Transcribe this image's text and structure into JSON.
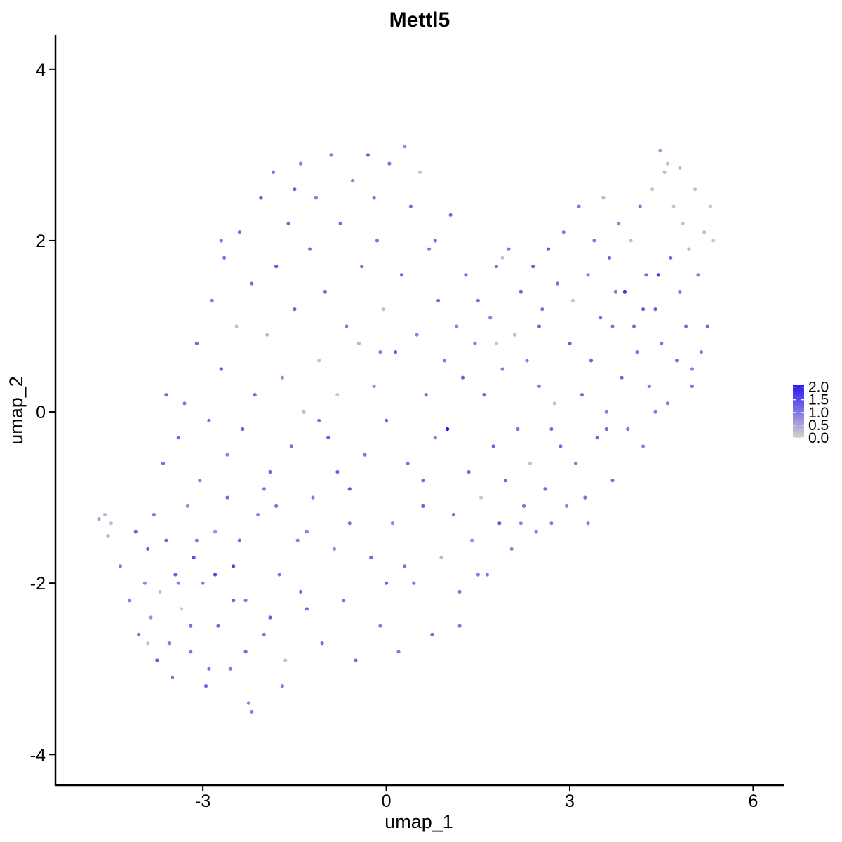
{
  "colors": {
    "low": "#d3d3d3",
    "high": "#2a17f0",
    "axis": "#000000"
  },
  "chart_data": {
    "type": "scatter",
    "title": "Mettl5",
    "xlabel": "umap_1",
    "ylabel": "umap_2",
    "xlim": [
      -5.4,
      6.5
    ],
    "ylim": [
      -4.35,
      4.4
    ],
    "xticks": [
      {
        "value": -3,
        "label": "-3"
      },
      {
        "value": 0,
        "label": "0"
      },
      {
        "value": 3,
        "label": "3"
      },
      {
        "value": 6,
        "label": "6"
      }
    ],
    "yticks": [
      {
        "value": -4,
        "label": "-4"
      },
      {
        "value": -2,
        "label": "-2"
      },
      {
        "value": 0,
        "label": "0"
      },
      {
        "value": 2,
        "label": "2"
      },
      {
        "value": 4,
        "label": "4"
      }
    ],
    "color_scale": {
      "min": 0,
      "max": 2.1,
      "ticks": [
        {
          "value": 2.0,
          "label": "2.0"
        },
        {
          "value": 1.5,
          "label": "1.5"
        },
        {
          "value": 1.0,
          "label": "1.0"
        },
        {
          "value": 0.5,
          "label": "0.5"
        },
        {
          "value": 0.0,
          "label": "0.0"
        }
      ]
    },
    "grid": false,
    "legend": "right",
    "points": [
      [
        -4.7,
        -1.25,
        0.6
      ],
      [
        -4.6,
        -1.2,
        0.3
      ],
      [
        -4.55,
        -1.45,
        0.5
      ],
      [
        -4.5,
        -1.3,
        0.2
      ],
      [
        -4.35,
        -1.8,
        1.0
      ],
      [
        -4.2,
        -2.2,
        0.9
      ],
      [
        -4.1,
        -1.4,
        1.2
      ],
      [
        -4.05,
        -2.6,
        1.1
      ],
      [
        -3.95,
        -2.0,
        0.8
      ],
      [
        -3.9,
        -1.6,
        1.3
      ],
      [
        -3.85,
        -2.4,
        0.7
      ],
      [
        -3.8,
        -1.2,
        1.0
      ],
      [
        -3.75,
        -2.9,
        1.4
      ],
      [
        -3.7,
        -2.1,
        0.2
      ],
      [
        -3.65,
        -0.6,
        1.1
      ],
      [
        -3.6,
        -1.5,
        1.2
      ],
      [
        -3.55,
        -2.7,
        0.9
      ],
      [
        -3.5,
        -3.1,
        1.0
      ],
      [
        -3.45,
        -1.9,
        1.3
      ],
      [
        -3.4,
        -0.3,
        1.2
      ],
      [
        -3.35,
        -2.3,
        0.1
      ],
      [
        -3.3,
        0.1,
        1.0
      ],
      [
        -3.25,
        -1.1,
        0.8
      ],
      [
        -3.2,
        -2.8,
        1.1
      ],
      [
        -3.15,
        -1.7,
        1.5
      ],
      [
        -3.1,
        0.8,
        1.2
      ],
      [
        -3.05,
        -0.8,
        1.0
      ],
      [
        -3.0,
        -2.0,
        0.9
      ],
      [
        -2.95,
        -3.2,
        1.3
      ],
      [
        -2.9,
        -0.1,
        1.1
      ],
      [
        -2.85,
        1.3,
        1.0
      ],
      [
        -2.8,
        -1.4,
        0.7
      ],
      [
        -2.75,
        -2.5,
        1.2
      ],
      [
        -2.7,
        0.5,
        1.4
      ],
      [
        -2.65,
        1.8,
        1.1
      ],
      [
        -2.6,
        -0.5,
        0.9
      ],
      [
        -2.55,
        -3.0,
        1.0
      ],
      [
        -2.5,
        -1.8,
        1.6
      ],
      [
        -2.45,
        1.0,
        0.2
      ],
      [
        -2.4,
        2.1,
        1.2
      ],
      [
        -2.35,
        -0.2,
        1.3
      ],
      [
        -2.3,
        -2.2,
        1.0
      ],
      [
        -2.25,
        -3.4,
        0.8
      ],
      [
        -2.2,
        1.5,
        1.1
      ],
      [
        -2.15,
        0.2,
        1.2
      ],
      [
        -2.1,
        -1.2,
        0.9
      ],
      [
        -2.05,
        2.5,
        1.3
      ],
      [
        -2.0,
        -2.6,
        1.0
      ],
      [
        -1.95,
        0.9,
        0.3
      ],
      [
        -1.9,
        -0.7,
        1.2
      ],
      [
        -1.85,
        2.8,
        1.1
      ],
      [
        -1.8,
        1.7,
        1.4
      ],
      [
        -1.75,
        -1.9,
        1.0
      ],
      [
        -1.7,
        0.4,
        0.8
      ],
      [
        -1.65,
        -2.9,
        0.2
      ],
      [
        -1.6,
        2.2,
        1.2
      ],
      [
        -1.55,
        -0.4,
        1.1
      ],
      [
        -1.5,
        1.2,
        1.3
      ],
      [
        -1.45,
        -1.5,
        0.9
      ],
      [
        -1.4,
        2.9,
        1.0
      ],
      [
        -1.35,
        0.0,
        0.3
      ],
      [
        -1.3,
        -2.3,
        1.2
      ],
      [
        -1.25,
        1.9,
        1.1
      ],
      [
        -1.2,
        -1.0,
        1.0
      ],
      [
        -1.15,
        2.5,
        0.9
      ],
      [
        -1.1,
        0.6,
        0.2
      ],
      [
        -1.05,
        -2.7,
        1.2
      ],
      [
        -1.0,
        1.4,
        1.1
      ],
      [
        -0.95,
        -0.3,
        1.3
      ],
      [
        -0.9,
        3.0,
        1.0
      ],
      [
        -0.85,
        -1.6,
        0.8
      ],
      [
        -0.8,
        0.2,
        0.1
      ],
      [
        -0.75,
        2.2,
        1.2
      ],
      [
        -0.7,
        -2.2,
        1.1
      ],
      [
        -0.65,
        1.0,
        1.0
      ],
      [
        -0.6,
        -0.9,
        1.4
      ],
      [
        -0.55,
        2.7,
        0.9
      ],
      [
        -0.5,
        -2.9,
        1.2
      ],
      [
        -0.45,
        0.8,
        0.3
      ],
      [
        -0.4,
        1.7,
        1.1
      ],
      [
        -0.35,
        -0.5,
        1.0
      ],
      [
        -0.3,
        3.0,
        1.3
      ],
      [
        -0.25,
        -1.7,
        1.2
      ],
      [
        -0.2,
        0.3,
        0.8
      ],
      [
        -0.15,
        2.0,
        1.1
      ],
      [
        -0.1,
        -2.5,
        1.0
      ],
      [
        -0.05,
        1.2,
        0.2
      ],
      [
        0.0,
        -0.1,
        1.2
      ],
      [
        0.05,
        2.9,
        1.1
      ],
      [
        0.1,
        -1.3,
        0.9
      ],
      [
        0.15,
        0.7,
        1.3
      ],
      [
        0.2,
        -2.8,
        1.0
      ],
      [
        0.25,
        1.6,
        1.2
      ],
      [
        0.3,
        3.1,
        0.8
      ],
      [
        0.35,
        -0.6,
        1.1
      ],
      [
        0.4,
        2.4,
        1.2
      ],
      [
        0.45,
        -2.0,
        1.0
      ],
      [
        0.5,
        0.9,
        0.9
      ],
      [
        0.55,
        2.8,
        0.2
      ],
      [
        0.6,
        -1.1,
        1.3
      ],
      [
        0.65,
        0.2,
        1.1
      ],
      [
        0.7,
        1.9,
        1.0
      ],
      [
        0.75,
        -2.6,
        1.2
      ],
      [
        0.8,
        -0.3,
        0.9
      ],
      [
        0.85,
        1.3,
        1.1
      ],
      [
        0.9,
        -1.7,
        0.3
      ],
      [
        0.95,
        0.6,
        1.0
      ],
      [
        1.0,
        -0.2,
        2.1
      ],
      [
        1.05,
        2.3,
        1.2
      ],
      [
        1.1,
        -1.2,
        1.1
      ],
      [
        1.15,
        1.0,
        0.9
      ],
      [
        1.2,
        -2.1,
        1.0
      ],
      [
        1.25,
        0.4,
        1.3
      ],
      [
        1.3,
        1.6,
        1.1
      ],
      [
        1.35,
        -0.7,
        1.2
      ],
      [
        1.4,
        -1.5,
        0.8
      ],
      [
        1.45,
        0.8,
        1.0
      ],
      [
        1.5,
        1.3,
        1.1
      ],
      [
        1.55,
        -1.0,
        0.2
      ],
      [
        1.6,
        0.2,
        1.2
      ],
      [
        1.65,
        -1.9,
        1.0
      ],
      [
        1.7,
        1.1,
        0.9
      ],
      [
        1.75,
        -0.4,
        1.3
      ],
      [
        1.8,
        1.7,
        1.1
      ],
      [
        1.85,
        -1.3,
        1.4
      ],
      [
        1.9,
        0.5,
        1.0
      ],
      [
        1.95,
        -0.8,
        1.2
      ],
      [
        2.0,
        1.9,
        1.1
      ],
      [
        2.05,
        -1.6,
        0.9
      ],
      [
        2.1,
        0.9,
        0.3
      ],
      [
        2.15,
        -0.2,
        1.0
      ],
      [
        2.2,
        1.4,
        1.2
      ],
      [
        2.25,
        -1.1,
        1.1
      ],
      [
        2.3,
        0.6,
        1.0
      ],
      [
        2.35,
        -0.6,
        0.2
      ],
      [
        2.4,
        1.7,
        1.3
      ],
      [
        2.45,
        -1.4,
        1.0
      ],
      [
        2.5,
        0.3,
        0.9
      ],
      [
        2.55,
        1.2,
        1.1
      ],
      [
        2.6,
        -0.9,
        1.2
      ],
      [
        2.65,
        1.9,
        1.4
      ],
      [
        2.7,
        -1.3,
        1.0
      ],
      [
        2.75,
        0.1,
        0.2
      ],
      [
        2.8,
        1.5,
        1.1
      ],
      [
        2.85,
        -0.4,
        1.2
      ],
      [
        2.9,
        2.1,
        1.0
      ],
      [
        2.95,
        -1.1,
        0.9
      ],
      [
        3.0,
        0.8,
        1.3
      ],
      [
        3.05,
        1.3,
        0.2
      ],
      [
        3.1,
        -0.6,
        1.1
      ],
      [
        3.15,
        2.4,
        1.0
      ],
      [
        3.2,
        0.2,
        1.2
      ],
      [
        3.25,
        -1.0,
        1.1
      ],
      [
        3.3,
        1.6,
        0.9
      ],
      [
        3.35,
        0.6,
        1.3
      ],
      [
        3.4,
        2.0,
        1.0
      ],
      [
        3.45,
        -0.3,
        1.2
      ],
      [
        3.5,
        1.1,
        1.1
      ],
      [
        3.55,
        2.5,
        0.3
      ],
      [
        3.6,
        0.0,
        1.0
      ],
      [
        3.65,
        1.8,
        1.2
      ],
      [
        3.7,
        -0.8,
        1.1
      ],
      [
        3.75,
        1.4,
        1.0
      ],
      [
        3.8,
        2.2,
        0.9
      ],
      [
        3.85,
        0.4,
        1.3
      ],
      [
        3.9,
        1.4,
        1.8
      ],
      [
        3.95,
        -0.2,
        1.1
      ],
      [
        4.0,
        2.0,
        0.2
      ],
      [
        4.05,
        1.0,
        1.2
      ],
      [
        4.1,
        0.7,
        1.0
      ],
      [
        4.15,
        2.4,
        1.1
      ],
      [
        4.2,
        -0.4,
        0.9
      ],
      [
        4.25,
        1.6,
        1.2
      ],
      [
        4.3,
        0.3,
        1.0
      ],
      [
        4.35,
        2.6,
        0.2
      ],
      [
        4.4,
        1.2,
        1.3
      ],
      [
        4.45,
        1.6,
        1.7
      ],
      [
        4.5,
        0.8,
        1.1
      ],
      [
        4.55,
        2.8,
        0.3
      ],
      [
        4.6,
        0.1,
        1.0
      ],
      [
        4.65,
        1.8,
        1.2
      ],
      [
        4.7,
        2.4,
        0.2
      ],
      [
        4.75,
        0.6,
        1.1
      ],
      [
        4.8,
        1.4,
        1.0
      ],
      [
        4.85,
        2.2,
        0.2
      ],
      [
        4.9,
        1.0,
        1.2
      ],
      [
        4.95,
        1.9,
        0.3
      ],
      [
        5.0,
        0.3,
        1.1
      ],
      [
        5.05,
        2.6,
        0.2
      ],
      [
        5.1,
        1.6,
        0.9
      ],
      [
        5.15,
        0.7,
        1.0
      ],
      [
        5.2,
        2.1,
        0.3
      ],
      [
        5.25,
        1.0,
        1.2
      ],
      [
        5.3,
        2.4,
        0.2
      ],
      [
        5.35,
        2.0,
        0.1
      ],
      [
        4.48,
        3.05,
        0.6
      ],
      [
        4.6,
        2.9,
        0.2
      ],
      [
        4.8,
        2.85,
        0.3
      ],
      [
        -1.3,
        -1.4,
        0.9
      ],
      [
        -2.6,
        -1.0,
        1.2
      ],
      [
        -3.2,
        -2.5,
        1.1
      ],
      [
        -2.0,
        -0.9,
        1.0
      ],
      [
        -0.8,
        -0.7,
        1.3
      ],
      [
        0.3,
        -1.8,
        1.1
      ],
      [
        1.2,
        -2.5,
        1.0
      ],
      [
        -3.6,
        0.2,
        1.2
      ],
      [
        -2.7,
        2.0,
        1.1
      ],
      [
        -1.5,
        2.6,
        1.3
      ],
      [
        -0.2,
        2.5,
        1.0
      ],
      [
        0.8,
        2.0,
        1.2
      ],
      [
        1.8,
        0.8,
        0.2
      ],
      [
        2.7,
        -0.2,
        1.1
      ],
      [
        3.6,
        -0.2,
        1.2
      ],
      [
        4.4,
        0.0,
        1.0
      ],
      [
        5.0,
        0.5,
        0.9
      ],
      [
        -2.3,
        -2.8,
        1.2
      ],
      [
        -1.7,
        -3.2,
        1.0
      ],
      [
        -0.6,
        -1.3,
        1.1
      ],
      [
        0.6,
        -0.8,
        1.2
      ],
      [
        1.5,
        -1.9,
        1.0
      ],
      [
        2.2,
        -1.3,
        0.9
      ],
      [
        3.3,
        -1.3,
        1.0
      ],
      [
        -3.9,
        -2.7,
        0.2
      ],
      [
        -2.9,
        -3.0,
        1.1
      ],
      [
        -2.2,
        -3.5,
        0.9
      ],
      [
        -1.9,
        -2.4,
        1.3
      ],
      [
        -3.4,
        -2.0,
        1.0
      ],
      [
        -2.4,
        -1.5,
        1.2
      ],
      [
        -1.1,
        -0.1,
        1.1
      ],
      [
        -0.1,
        0.7,
        1.0
      ],
      [
        1.9,
        1.8,
        0.2
      ],
      [
        2.5,
        1.0,
        1.2
      ],
      [
        3.7,
        1.0,
        1.1
      ],
      [
        4.2,
        1.2,
        1.3
      ],
      [
        -2.8,
        -1.9,
        1.6
      ],
      [
        -1.4,
        -2.1,
        1.1
      ],
      [
        0.0,
        -2.0,
        1.2
      ],
      [
        -3.1,
        -1.5,
        1.0
      ],
      [
        -2.5,
        -2.2,
        1.3
      ],
      [
        -1.8,
        -1.1,
        1.1
      ]
    ]
  }
}
